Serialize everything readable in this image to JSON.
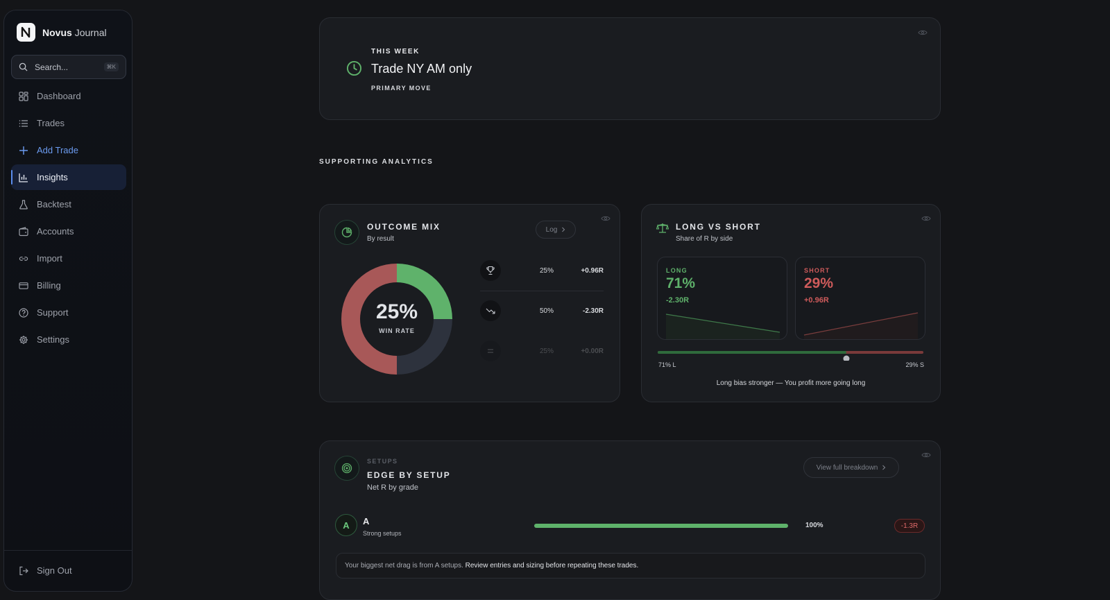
{
  "app": {
    "brand_bold": "Novus",
    "brand_light": "Journal"
  },
  "sidebar": {
    "search_placeholder": "Search...",
    "search_shortcut": "⌘K",
    "items": [
      {
        "label": "Dashboard",
        "icon": "grid-icon"
      },
      {
        "label": "Trades",
        "icon": "list-icon"
      },
      {
        "label": "Add Trade",
        "icon": "plus-icon"
      },
      {
        "label": "Insights",
        "icon": "bar-chart-icon"
      },
      {
        "label": "Backtest",
        "icon": "flask-icon"
      },
      {
        "label": "Accounts",
        "icon": "wallet-icon"
      },
      {
        "label": "Import",
        "icon": "link-icon"
      },
      {
        "label": "Billing",
        "icon": "credit-card-icon"
      },
      {
        "label": "Support",
        "icon": "help-circle-icon"
      },
      {
        "label": "Settings",
        "icon": "gear-icon"
      }
    ],
    "active": "Insights",
    "sign_out": "Sign Out"
  },
  "week": {
    "kicker": "THIS WEEK",
    "title": "Trade NY AM only",
    "sub": "PRIMARY MOVE"
  },
  "section": {
    "title": "SUPPORTING ANALYTICS"
  },
  "outcome": {
    "title": "OUTCOME MIX",
    "subtitle": "By result",
    "log_label": "Log",
    "center_value": "25%",
    "center_label": "WIN RATE",
    "rows": [
      {
        "icon": "trophy-icon",
        "pct": "25%",
        "r": "+0.96R"
      },
      {
        "icon": "trend-down-icon",
        "pct": "50%",
        "r": "-2.30R"
      },
      {
        "icon": "equals-icon",
        "pct": "25%",
        "r": "+0.00R"
      }
    ],
    "colors": {
      "win": "#5fb26b",
      "loss": "#a85858",
      "breakeven": "#2d323d"
    }
  },
  "chart_data": {
    "type": "pie",
    "categories": [
      "Win",
      "Loss",
      "Breakeven"
    ],
    "values": [
      25,
      50,
      25
    ]
  },
  "long_short": {
    "title": "LONG VS SHORT",
    "subtitle": "Share of R by side",
    "long": {
      "label": "LONG",
      "pct": "71%",
      "r": "-2.30R"
    },
    "short": {
      "label": "SHORT",
      "pct": "29%",
      "r": "+0.96R"
    },
    "bar_left": "71% L",
    "bar_right": "29% S",
    "long_share": 0.71,
    "note": "Long bias stronger — You profit more going long",
    "colors": {
      "long": "#5fb26b",
      "short": "#cf5b5b"
    }
  },
  "setups": {
    "kicker": "SETUPS",
    "title": "EDGE BY SETUP",
    "subtitle": "Net R by grade",
    "view_label": "View full breakdown",
    "rows": [
      {
        "grade": "A",
        "name": "A",
        "desc": "Strong setups",
        "pct": "100%",
        "share": 1.0,
        "r": "-1.3R"
      }
    ],
    "tip_prefix": "Your biggest net drag is from A setups.",
    "tip_suffix": "Review entries and sizing before repeating these trades."
  }
}
